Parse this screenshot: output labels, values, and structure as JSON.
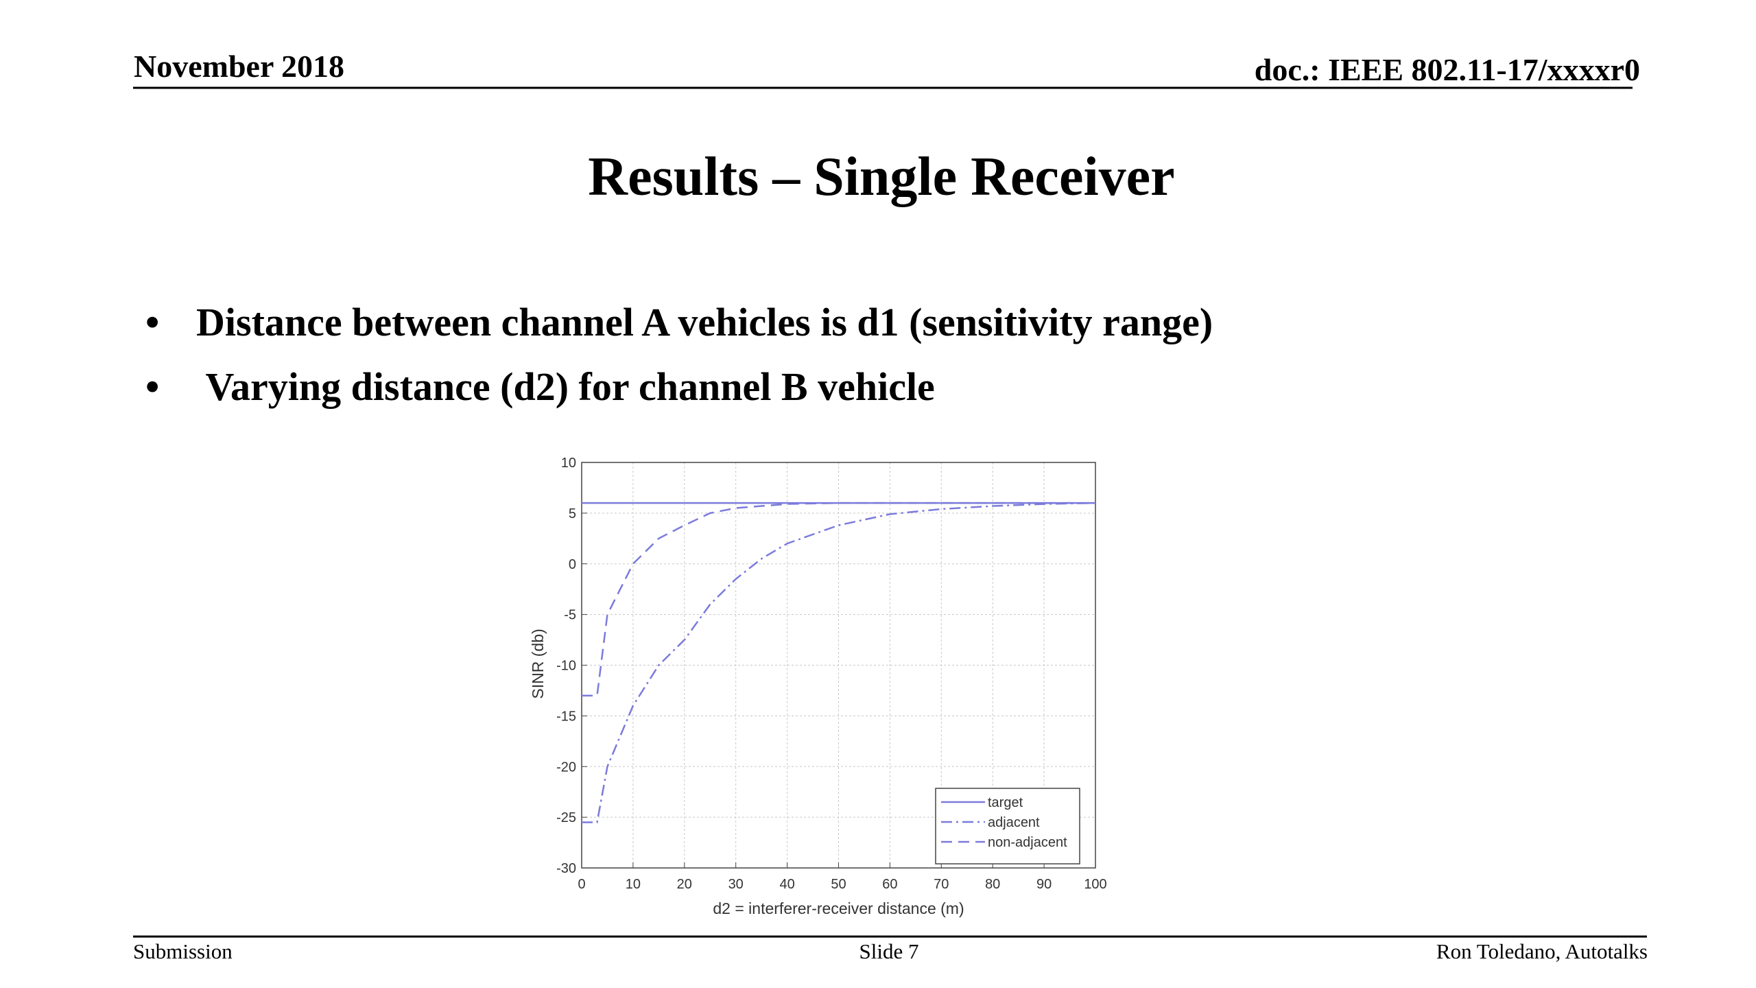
{
  "header": {
    "date": "November 2018",
    "doc": "doc.: IEEE 802.11-17/xxxxr0"
  },
  "title": "Results – Single Receiver",
  "bullets": [
    "Distance between channel A vehicles is d1 (sensitivity range)",
    " Varying distance (d2) for channel B vehicle"
  ],
  "chart_data": {
    "type": "line",
    "xlabel": "d2 = interferer-receiver distance (m)",
    "ylabel": "SINR (db)",
    "x": [
      0,
      3,
      5,
      10,
      15,
      20,
      25,
      30,
      35,
      40,
      50,
      60,
      70,
      80,
      90,
      100
    ],
    "series": [
      {
        "name": "target",
        "color": "#7b7bdc",
        "dash": "solid",
        "values": [
          6,
          6,
          6,
          6,
          6,
          6,
          6,
          6,
          6,
          6,
          6,
          6,
          6,
          6,
          6,
          6
        ]
      },
      {
        "name": "adjacent",
        "color": "#7b7bdc",
        "dash": "dashdot",
        "values": [
          -25.5,
          -25.5,
          -20,
          -14,
          -10,
          -7.5,
          -4,
          -1.5,
          0.5,
          2,
          3.8,
          4.9,
          5.4,
          5.7,
          5.9,
          6
        ]
      },
      {
        "name": "non-adjacent",
        "color": "#7b7bdc",
        "dash": "dashed",
        "values": [
          -13,
          -13,
          -5,
          0,
          2.5,
          3.8,
          5,
          5.5,
          5.7,
          5.9,
          6,
          6,
          6,
          6,
          6,
          6
        ]
      }
    ],
    "xlim": [
      0,
      100
    ],
    "xticks": [
      0,
      10,
      20,
      30,
      40,
      50,
      60,
      70,
      80,
      90,
      100
    ],
    "ylim": [
      -30,
      10
    ],
    "yticks": [
      -30,
      -25,
      -20,
      -15,
      -10,
      -5,
      0,
      5,
      10
    ],
    "grid": true,
    "legend": "lower right"
  },
  "footer": {
    "left": "Submission",
    "center": "Slide 7",
    "right": "Ron Toledano, Autotalks"
  }
}
